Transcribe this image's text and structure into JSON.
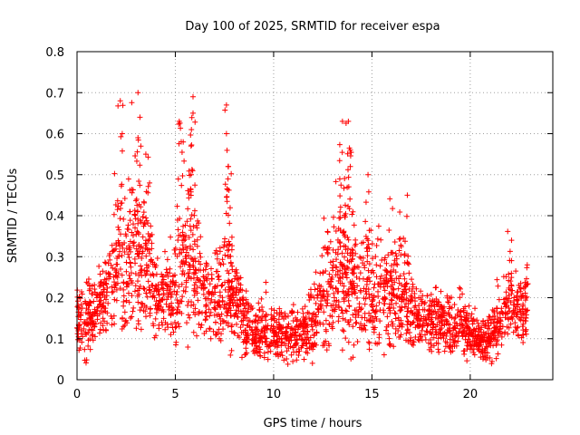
{
  "chart_data": {
    "type": "scatter",
    "title": "Day 100 of 2025, SRMTID for receiver espa",
    "xlabel": "GPS time / hours",
    "ylabel": "SRMTID / TECUs",
    "xlim": [
      0,
      24.2
    ],
    "ylim": [
      0,
      0.8
    ],
    "x_ticks": [
      0,
      5,
      10,
      15,
      20
    ],
    "x_tick_labels": [
      "0",
      "5",
      "10",
      "15",
      "20"
    ],
    "y_ticks": [
      0,
      0.1,
      0.2,
      0.3,
      0.4,
      0.5,
      0.6,
      0.7,
      0.8
    ],
    "y_tick_labels": [
      "0",
      "0.1",
      "0.2",
      "0.3",
      "0.4",
      "0.5",
      "0.6",
      "0.7",
      "0.8"
    ],
    "grid": true,
    "marker": "plus",
    "marker_color": "#ff0000",
    "envelope_description": "dense scatter of SRMTID values vs GPS time; values estimated as baseline level and spread per hour",
    "series": [
      {
        "name": "SRMTID",
        "x_start": 0.0,
        "x_end": 22.9,
        "sampling_points": [
          [
            0.0,
            0.15,
            0.06
          ],
          [
            0.5,
            0.14,
            0.08
          ],
          [
            1.0,
            0.17,
            0.05
          ],
          [
            1.5,
            0.2,
            0.08
          ],
          [
            2.0,
            0.27,
            0.13
          ],
          [
            2.5,
            0.3,
            0.15
          ],
          [
            3.0,
            0.33,
            0.17
          ],
          [
            3.5,
            0.27,
            0.12
          ],
          [
            4.0,
            0.2,
            0.08
          ],
          [
            4.5,
            0.19,
            0.07
          ],
          [
            5.0,
            0.22,
            0.12
          ],
          [
            5.5,
            0.28,
            0.15
          ],
          [
            6.0,
            0.27,
            0.16
          ],
          [
            6.5,
            0.2,
            0.08
          ],
          [
            7.0,
            0.18,
            0.06
          ],
          [
            7.5,
            0.24,
            0.16
          ],
          [
            8.0,
            0.19,
            0.09
          ],
          [
            8.5,
            0.14,
            0.07
          ],
          [
            9.0,
            0.11,
            0.05
          ],
          [
            9.5,
            0.12,
            0.06
          ],
          [
            10.0,
            0.12,
            0.05
          ],
          [
            10.5,
            0.1,
            0.05
          ],
          [
            11.0,
            0.11,
            0.05
          ],
          [
            11.5,
            0.11,
            0.05
          ],
          [
            12.0,
            0.13,
            0.07
          ],
          [
            12.5,
            0.2,
            0.12
          ],
          [
            13.0,
            0.24,
            0.13
          ],
          [
            13.5,
            0.27,
            0.17
          ],
          [
            14.0,
            0.22,
            0.13
          ],
          [
            14.5,
            0.2,
            0.12
          ],
          [
            15.0,
            0.22,
            0.13
          ],
          [
            15.5,
            0.21,
            0.12
          ],
          [
            16.0,
            0.2,
            0.11
          ],
          [
            16.5,
            0.22,
            0.13
          ],
          [
            17.0,
            0.16,
            0.08
          ],
          [
            17.5,
            0.14,
            0.06
          ],
          [
            18.0,
            0.15,
            0.07
          ],
          [
            18.5,
            0.14,
            0.06
          ],
          [
            19.0,
            0.13,
            0.05
          ],
          [
            19.5,
            0.12,
            0.05
          ],
          [
            20.0,
            0.11,
            0.05
          ],
          [
            20.5,
            0.09,
            0.04
          ],
          [
            21.0,
            0.1,
            0.05
          ],
          [
            21.5,
            0.14,
            0.06
          ],
          [
            22.0,
            0.2,
            0.09
          ],
          [
            22.5,
            0.16,
            0.06
          ],
          [
            22.9,
            0.17,
            0.06
          ]
        ],
        "peaks": [
          [
            2.2,
            0.68
          ],
          [
            2.3,
            0.6
          ],
          [
            3.1,
            0.7
          ],
          [
            3.2,
            0.64
          ],
          [
            3.1,
            0.59
          ],
          [
            3.5,
            0.55
          ],
          [
            5.2,
            0.63
          ],
          [
            5.3,
            0.58
          ],
          [
            5.9,
            0.69
          ],
          [
            5.9,
            0.65
          ],
          [
            5.8,
            0.57
          ],
          [
            5.8,
            0.5
          ],
          [
            7.6,
            0.67
          ],
          [
            7.6,
            0.6
          ],
          [
            7.7,
            0.52
          ],
          [
            13.5,
            0.63
          ],
          [
            13.8,
            0.63
          ],
          [
            13.9,
            0.56
          ],
          [
            13.9,
            0.52
          ],
          [
            14.8,
            0.5
          ],
          [
            16.8,
            0.45
          ],
          [
            22.1,
            0.34
          ],
          [
            22.9,
            0.28
          ]
        ]
      }
    ]
  }
}
